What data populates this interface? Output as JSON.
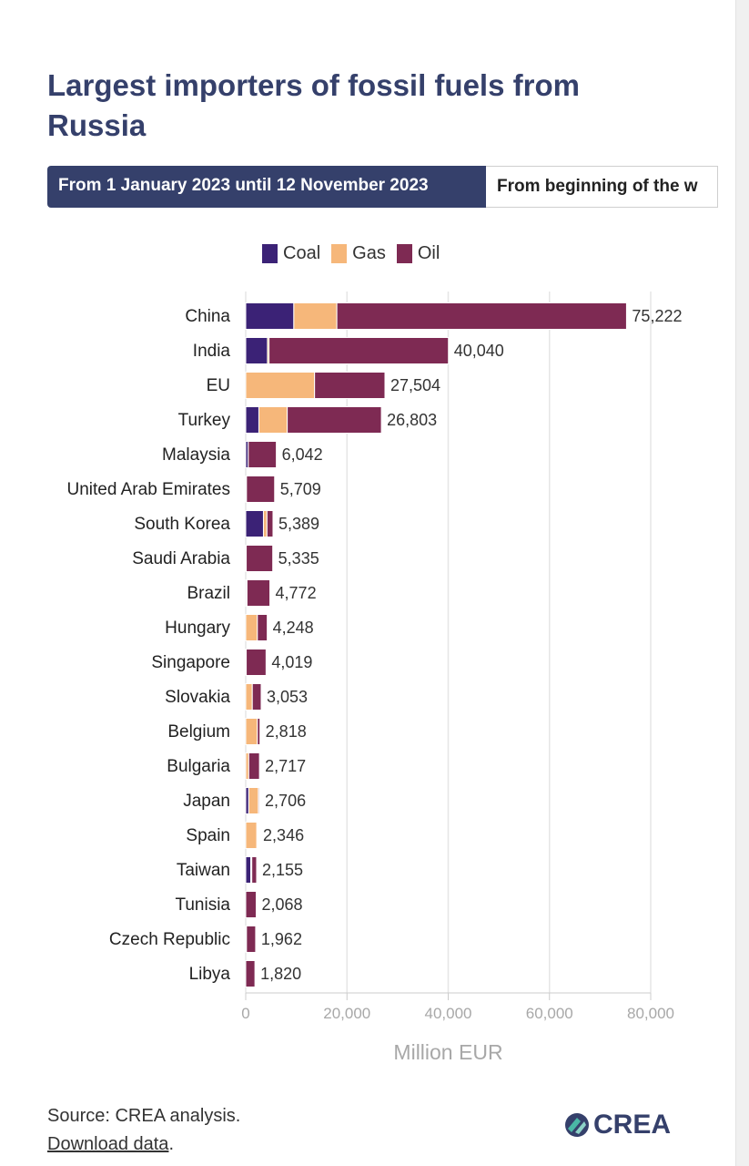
{
  "title": "Largest importers of fossil fuels from Russia",
  "tabs": [
    {
      "label": "From 1 January 2023 until 12 November 2023",
      "active": true
    },
    {
      "label": "From beginning of the w",
      "active": false
    }
  ],
  "legend": [
    {
      "name": "Coal",
      "color": "#3b2276"
    },
    {
      "name": "Gas",
      "color": "#f6b77a"
    },
    {
      "name": "Oil",
      "color": "#7e2a53"
    }
  ],
  "chart_data": {
    "type": "bar",
    "orientation": "horizontal",
    "stacked": true,
    "xlabel": "Million EUR",
    "xlim": [
      0,
      80000
    ],
    "xticks": [
      0,
      20000,
      40000,
      60000,
      80000
    ],
    "xtick_labels": [
      "0",
      "20,000",
      "40,000",
      "60,000",
      "80,000"
    ],
    "grid": true,
    "legend_position": "top",
    "categories": [
      "China",
      "India",
      "EU",
      "Turkey",
      "Malaysia",
      "United Arab Emirates",
      "South Korea",
      "Saudi Arabia",
      "Brazil",
      "Hungary",
      "Singapore",
      "Slovakia",
      "Belgium",
      "Bulgaria",
      "Japan",
      "Spain",
      "Taiwan",
      "Tunisia",
      "Czech Republic",
      "Libya"
    ],
    "series": [
      {
        "name": "Coal",
        "color": "#3b2276",
        "values": [
          9500,
          4300,
          0,
          2600,
          500,
          100,
          3500,
          100,
          200,
          0,
          100,
          0,
          0,
          0,
          600,
          0,
          1000,
          0,
          50,
          0
        ]
      },
      {
        "name": "Gas",
        "color": "#f6b77a",
        "values": [
          8500,
          300,
          13600,
          5600,
          0,
          50,
          700,
          0,
          50,
          2300,
          0,
          1300,
          2300,
          600,
          1900,
          2200,
          200,
          0,
          100,
          0
        ]
      },
      {
        "name": "Oil",
        "color": "#7e2a53",
        "values": [
          57222,
          35440,
          13904,
          18603,
          5542,
          5559,
          1189,
          5235,
          4522,
          1948,
          3919,
          1753,
          518,
          2117,
          206,
          146,
          955,
          2068,
          1812,
          1820
        ]
      }
    ],
    "total_labels": [
      "75,222",
      "40,040",
      "27,504",
      "26,803",
      "6,042",
      "5,709",
      "5,389",
      "5,335",
      "4,772",
      "4,248",
      "4,019",
      "3,053",
      "2,818",
      "2,717",
      "2,706",
      "2,346",
      "2,155",
      "2,068",
      "1,962",
      "1,820"
    ]
  },
  "source": {
    "prefix": "Source: CREA analysis.",
    "link": "Download data",
    "suffix": "."
  },
  "logo": {
    "text": "CREA"
  }
}
